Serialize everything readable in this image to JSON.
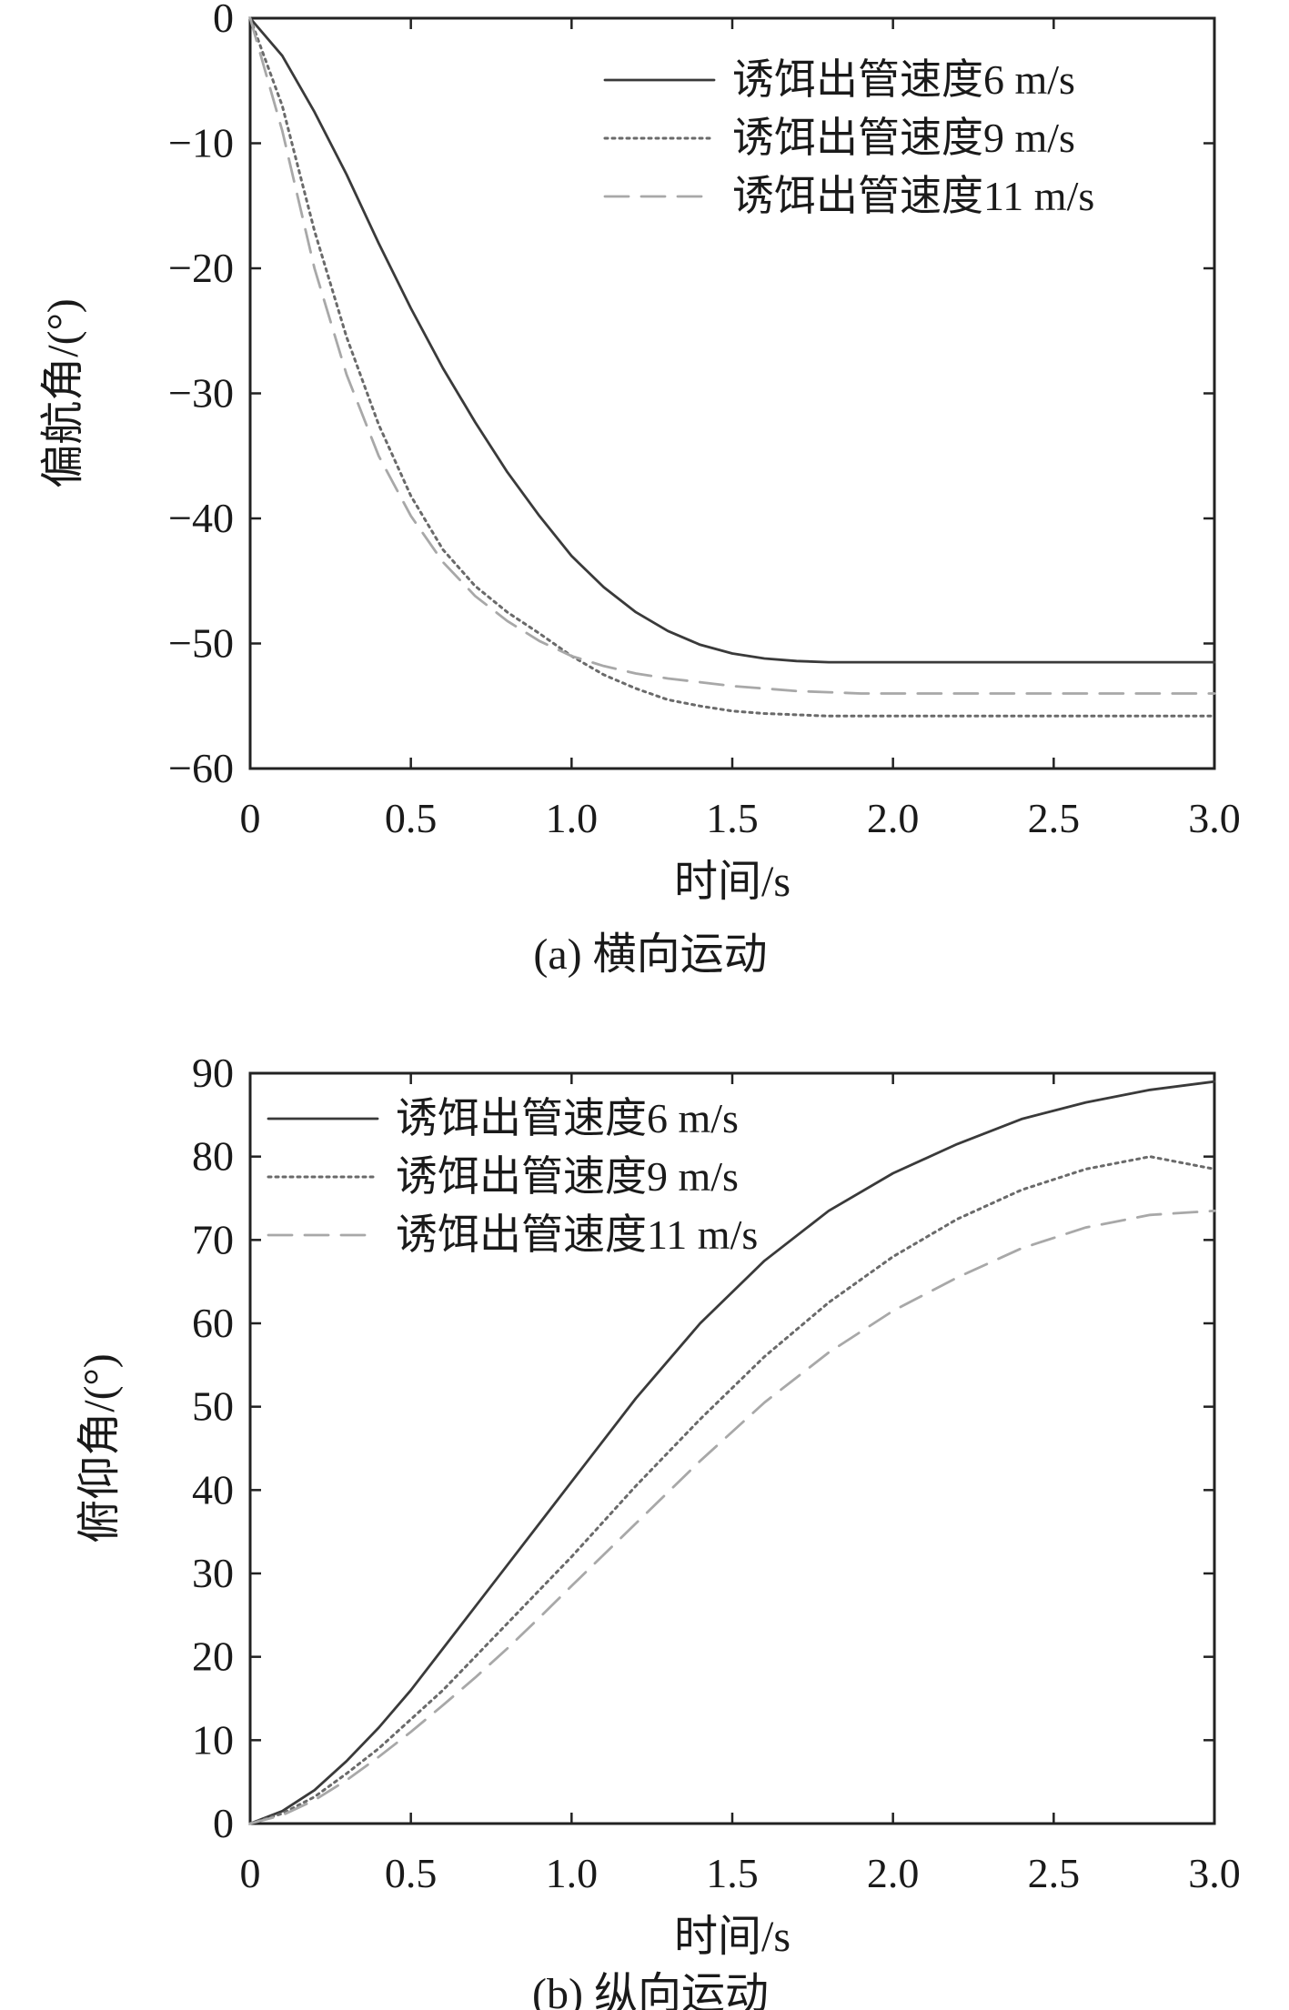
{
  "chart_data": [
    {
      "type": "line",
      "caption": "(a) 横向运动",
      "xlabel": "时间/s",
      "ylabel": "偏航角/(°)",
      "xlim": [
        0,
        3.0
      ],
      "ylim": [
        -60,
        0
      ],
      "xticks": [
        "0",
        "0.5",
        "1.0",
        "1.5",
        "2.0",
        "2.5",
        "3.0"
      ],
      "xtick_values": [
        0,
        0.5,
        1.0,
        1.5,
        2.0,
        2.5,
        3.0
      ],
      "yticks": [
        "0",
        "−10",
        "−20",
        "−30",
        "−40",
        "−50",
        "−60"
      ],
      "ytick_values": [
        0,
        -10,
        -20,
        -30,
        -40,
        -50,
        -60
      ],
      "legend_position": "top-right",
      "x": [
        0,
        0.1,
        0.2,
        0.3,
        0.4,
        0.5,
        0.6,
        0.7,
        0.8,
        0.9,
        1.0,
        1.1,
        1.2,
        1.3,
        1.4,
        1.5,
        1.6,
        1.7,
        1.8,
        1.9,
        2.0,
        2.2,
        2.4,
        2.6,
        2.8,
        3.0
      ],
      "series": [
        {
          "name": "诱饵出管速度6 m/s",
          "style": "solid",
          "color": "#3a3a3a",
          "values": [
            0,
            -3,
            -7.5,
            -12.5,
            -18,
            -23.2,
            -28,
            -32.3,
            -36.3,
            -39.8,
            -43,
            -45.5,
            -47.5,
            -49,
            -50.1,
            -50.8,
            -51.2,
            -51.4,
            -51.5,
            -51.5,
            -51.5,
            -51.5,
            -51.5,
            -51.5,
            -51.5,
            -51.5
          ]
        },
        {
          "name": "诱饵出管速度9 m/s",
          "style": "dotted",
          "color": "#6a6a6a",
          "values": [
            0,
            -7,
            -17,
            -25.5,
            -32.5,
            -38.2,
            -42.5,
            -45.4,
            -47.5,
            -49.2,
            -51,
            -52.5,
            -53.6,
            -54.5,
            -55,
            -55.4,
            -55.6,
            -55.7,
            -55.8,
            -55.8,
            -55.8,
            -55.8,
            -55.8,
            -55.8,
            -55.8,
            -55.8
          ]
        },
        {
          "name": "诱饵出管速度11 m/s",
          "style": "dashed",
          "color": "#a8a8a8",
          "values": [
            0,
            -9,
            -20,
            -28.5,
            -35,
            -39.8,
            -43.5,
            -46.2,
            -48.2,
            -49.8,
            -51,
            -51.8,
            -52.4,
            -52.8,
            -53.1,
            -53.4,
            -53.6,
            -53.8,
            -53.9,
            -54,
            -54,
            -54,
            -54,
            -54,
            -54,
            -54
          ]
        }
      ]
    },
    {
      "type": "line",
      "caption": "(b) 纵向运动",
      "xlabel": "时间/s",
      "ylabel": "俯仰角/(°)",
      "xlim": [
        0,
        3.0
      ],
      "ylim": [
        0,
        90
      ],
      "xticks": [
        "0",
        "0.5",
        "1.0",
        "1.5",
        "2.0",
        "2.5",
        "3.0"
      ],
      "xtick_values": [
        0,
        0.5,
        1.0,
        1.5,
        2.0,
        2.5,
        3.0
      ],
      "yticks": [
        "0",
        "10",
        "20",
        "30",
        "40",
        "50",
        "60",
        "70",
        "80",
        "90"
      ],
      "ytick_values": [
        0,
        10,
        20,
        30,
        40,
        50,
        60,
        70,
        80,
        90
      ],
      "legend_position": "top-left",
      "x": [
        0,
        0.1,
        0.2,
        0.3,
        0.4,
        0.5,
        0.6,
        0.7,
        0.8,
        0.9,
        1.0,
        1.2,
        1.4,
        1.6,
        1.8,
        2.0,
        2.2,
        2.4,
        2.6,
        2.8,
        3.0
      ],
      "series": [
        {
          "name": "诱饵出管速度6 m/s",
          "style": "solid",
          "color": "#3a3a3a",
          "values": [
            0,
            1.5,
            4,
            7.5,
            11.5,
            16,
            21,
            26,
            31,
            36,
            41,
            51,
            60,
            67.5,
            73.5,
            78,
            81.5,
            84.5,
            86.5,
            88,
            89
          ]
        },
        {
          "name": "诱饵出管速度9 m/s",
          "style": "dotted",
          "color": "#6a6a6a",
          "values": [
            0,
            1.2,
            3.2,
            6,
            9,
            12.5,
            16,
            20,
            24,
            28,
            32,
            40.5,
            48.5,
            56,
            62.5,
            68,
            72.5,
            76,
            78.5,
            80,
            78.5
          ]
        },
        {
          "name": "诱饵出管速度11 m/s",
          "style": "dashed",
          "color": "#a8a8a8",
          "values": [
            0,
            1,
            2.8,
            5.2,
            8,
            11,
            14.2,
            17.5,
            21,
            24.7,
            28.5,
            36,
            43.5,
            50.5,
            56.5,
            61.5,
            65.5,
            69,
            71.5,
            73,
            73.5
          ]
        }
      ]
    }
  ]
}
